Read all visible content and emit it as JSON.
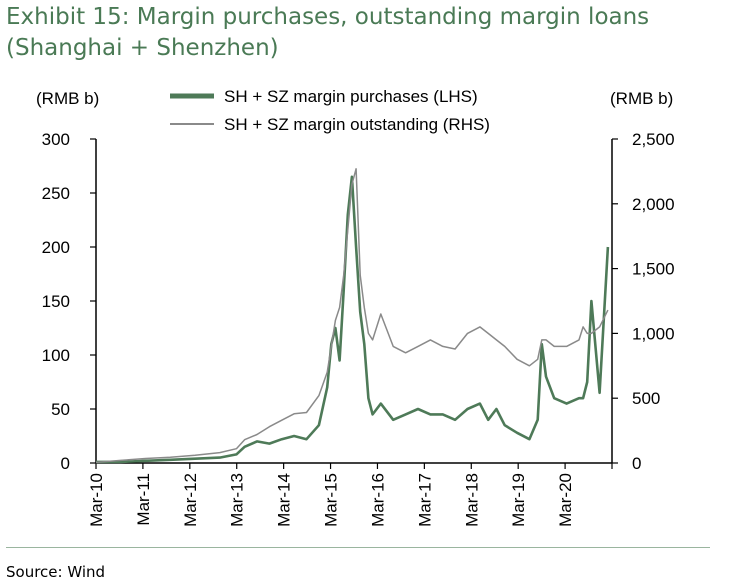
{
  "title": {
    "line1": "Exhibit 15: Margin purchases, outstanding margin loans",
    "line2": "(Shanghai + Shenzhen)"
  },
  "source": "Source: Wind",
  "colors": {
    "purchases": "#4e7a58",
    "outstanding": "#8a8a8a",
    "title": "#4a7a55"
  },
  "chart_data": {
    "type": "line",
    "y_left_unit": "(RMB b)",
    "y_right_unit": "(RMB b)",
    "y_left_lim": [
      0,
      300
    ],
    "y_right_lim": [
      0,
      2500
    ],
    "y_left_ticks": [
      "0",
      "50",
      "100",
      "150",
      "200",
      "250",
      "300"
    ],
    "y_right_ticks": [
      "0",
      "500",
      "1,000",
      "1,500",
      "2,000",
      "2,500"
    ],
    "x_ticks": [
      "Mar-10",
      "Mar-11",
      "Mar-12",
      "Mar-13",
      "Mar-14",
      "Mar-15",
      "Mar-16",
      "Mar-17",
      "Mar-18",
      "Mar-19",
      "Mar-20"
    ],
    "grid": false,
    "legend_position": "top",
    "series": [
      {
        "name": "SH + SZ margin purchases (LHS)",
        "axis": "left",
        "x": [
          "2010-03",
          "2010-09",
          "2011-03",
          "2011-09",
          "2012-03",
          "2012-09",
          "2013-01",
          "2013-03",
          "2013-06",
          "2013-09",
          "2013-12",
          "2014-03",
          "2014-06",
          "2014-09",
          "2014-11",
          "2014-12",
          "2015-01",
          "2015-02",
          "2015-03",
          "2015-04",
          "2015-05",
          "2015-06",
          "2015-07",
          "2015-08",
          "2015-09",
          "2015-10",
          "2015-12",
          "2016-03",
          "2016-06",
          "2016-09",
          "2016-12",
          "2017-03",
          "2017-06",
          "2017-09",
          "2017-12",
          "2018-02",
          "2018-04",
          "2018-06",
          "2018-09",
          "2018-12",
          "2019-02",
          "2019-03",
          "2019-04",
          "2019-06",
          "2019-09",
          "2019-12",
          "2020-01",
          "2020-02",
          "2020-03",
          "2020-05",
          "2020-07"
        ],
        "values": [
          1,
          1,
          2,
          3,
          4,
          5,
          8,
          15,
          20,
          18,
          22,
          25,
          22,
          35,
          70,
          110,
          125,
          95,
          160,
          230,
          265,
          200,
          140,
          110,
          60,
          45,
          55,
          40,
          45,
          50,
          45,
          45,
          40,
          50,
          55,
          40,
          50,
          35,
          28,
          22,
          40,
          110,
          80,
          60,
          55,
          60,
          60,
          75,
          150,
          65,
          200
        ]
      },
      {
        "name": "SH + SZ margin outstanding (RHS)",
        "axis": "right",
        "x": [
          "2010-03",
          "2010-09",
          "2011-03",
          "2011-09",
          "2012-03",
          "2012-09",
          "2013-01",
          "2013-03",
          "2013-06",
          "2013-09",
          "2013-12",
          "2014-03",
          "2014-06",
          "2014-09",
          "2014-11",
          "2014-12",
          "2015-01",
          "2015-02",
          "2015-03",
          "2015-04",
          "2015-05",
          "2015-06",
          "2015-07",
          "2015-08",
          "2015-09",
          "2015-10",
          "2015-12",
          "2016-03",
          "2016-06",
          "2016-09",
          "2016-12",
          "2017-03",
          "2017-06",
          "2017-09",
          "2017-12",
          "2018-02",
          "2018-04",
          "2018-06",
          "2018-09",
          "2018-12",
          "2019-02",
          "2019-03",
          "2019-04",
          "2019-06",
          "2019-09",
          "2019-12",
          "2020-01",
          "2020-02",
          "2020-03",
          "2020-05",
          "2020-07"
        ],
        "values": [
          5,
          20,
          35,
          45,
          60,
          80,
          110,
          180,
          220,
          280,
          330,
          380,
          390,
          520,
          700,
          900,
          1100,
          1200,
          1450,
          1800,
          2150,
          2270,
          1450,
          1200,
          1000,
          950,
          1150,
          900,
          850,
          900,
          950,
          900,
          880,
          1000,
          1050,
          1000,
          950,
          900,
          800,
          750,
          800,
          950,
          950,
          900,
          900,
          950,
          1050,
          1000,
          1000,
          1050,
          1180
        ]
      }
    ]
  }
}
